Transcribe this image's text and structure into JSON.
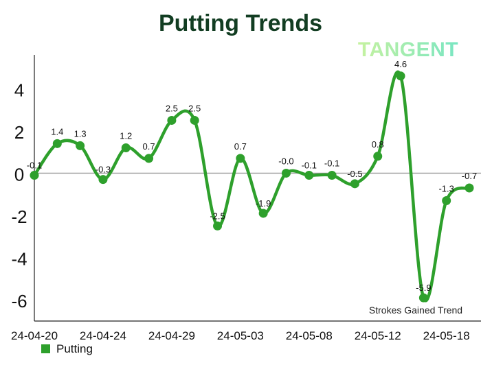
{
  "chart_data": {
    "type": "line",
    "title": "Putting Trends",
    "logo_text": "TANGENT",
    "annotation": "Strokes Gained Trend",
    "xlabel": "",
    "ylabel": "",
    "ylim": [
      -7,
      5.6
    ],
    "yticks": [
      4,
      2,
      0,
      -2,
      -4,
      -6
    ],
    "ytick_labels": [
      "4",
      "2",
      "0",
      "-2",
      "-4",
      "-6"
    ],
    "x_ticks": [
      {
        "index": 0,
        "label": "24-04-20"
      },
      {
        "index": 3,
        "label": "24-04-24"
      },
      {
        "index": 6,
        "label": "24-04-29"
      },
      {
        "index": 9,
        "label": "24-05-03"
      },
      {
        "index": 12,
        "label": "24-05-08"
      },
      {
        "index": 15,
        "label": "24-05-12"
      },
      {
        "index": 18,
        "label": "24-05-18"
      }
    ],
    "grid": false,
    "legend_position": "bottom-left",
    "series": [
      {
        "name": "Putting",
        "color": "#2ea02c",
        "values": [
          -0.1,
          1.4,
          1.3,
          -0.3,
          1.2,
          0.7,
          2.5,
          2.5,
          -2.5,
          0.7,
          -1.9,
          -0.0,
          -0.1,
          -0.1,
          -0.5,
          0.8,
          4.6,
          -5.9,
          -1.3,
          -0.7
        ],
        "labels": [
          "-0.1",
          "1.4",
          "1.3",
          "-0.3",
          "1.2",
          "0.7",
          "2.5",
          "2.5",
          "-2.5",
          "0.7",
          "-1.9",
          "-0.0",
          "-0.1",
          "-0.1",
          "-0.5",
          "0.8",
          "4.6",
          "-5.9",
          "-1.3",
          "-0.7"
        ]
      }
    ]
  },
  "colors": {
    "title": "#123d22",
    "line": "#2ea02c",
    "axis": "#222222",
    "zero_line": "#9a9a9a",
    "logo_start": "#c6f2a0",
    "logo_end": "#79e6c2"
  }
}
